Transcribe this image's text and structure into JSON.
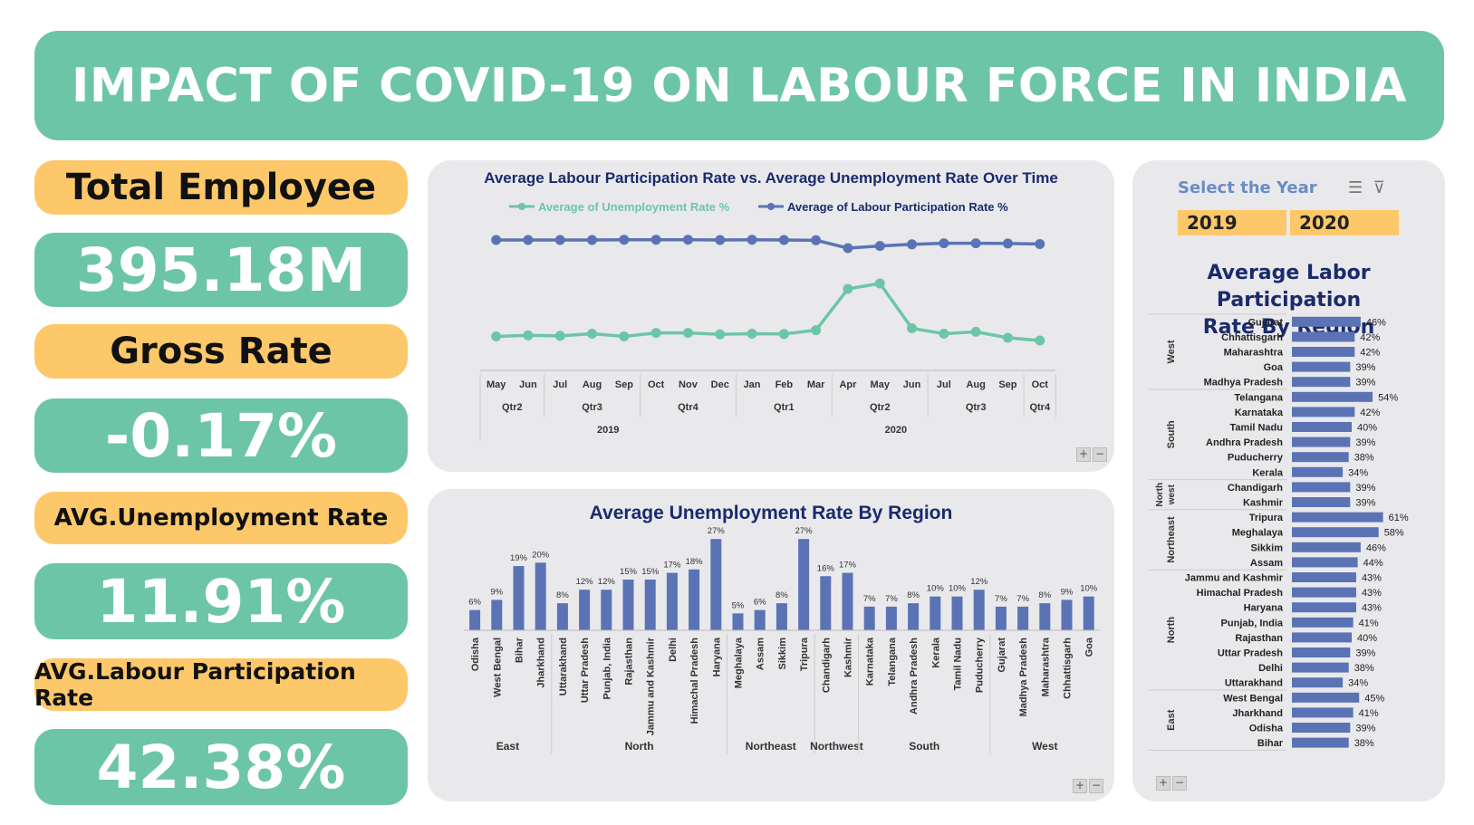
{
  "title": "IMPACT OF COVID-19 ON LABOUR FORCE IN INDIA",
  "kpis": {
    "total_employee_label": "Total Employee",
    "total_employee_value": "395.18M",
    "gross_rate_label": "Gross Rate",
    "gross_rate_value": "-0.17%",
    "avg_unemployment_label": "AVG.Unemployment Rate",
    "avg_unemployment_value": "11.91%",
    "avg_lpr_label": "AVG.Labour Participation Rate",
    "avg_lpr_value": "42.38%"
  },
  "slicer": {
    "title": "Select the Year",
    "years": [
      "2019",
      "2020"
    ]
  },
  "colors": {
    "green": "#6dc5a8",
    "blue": "#5b73b5",
    "orange": "#fdc86a",
    "navy": "#1a2a6c"
  },
  "chart_data": [
    {
      "type": "line",
      "title": "Average Labour Participation Rate vs. Average Unemployment Rate Over Time",
      "x": [
        "May",
        "Jun",
        "Jul",
        "Aug",
        "Sep",
        "Oct",
        "Nov",
        "Dec",
        "Jan",
        "Feb",
        "Mar",
        "Apr",
        "May",
        "Jun",
        "Jul",
        "Aug",
        "Sep",
        "Oct"
      ],
      "quarters": [
        {
          "label": "Qtr2",
          "span": 2
        },
        {
          "label": "Qtr3",
          "span": 3
        },
        {
          "label": "Qtr4",
          "span": 3
        },
        {
          "label": "Qtr1",
          "span": 3
        },
        {
          "label": "Qtr2",
          "span": 3
        },
        {
          "label": "Qtr3",
          "span": 3
        },
        {
          "label": "Qtr4",
          "span": 1
        }
      ],
      "years": [
        {
          "label": "2019",
          "span": 8
        },
        {
          "label": "2020",
          "span": 10
        }
      ],
      "legend_position": "top",
      "series": [
        {
          "name": "Average of Unemployment Rate %",
          "color": "#6dc5a8",
          "values": [
            8.5,
            8.9,
            8.7,
            9.5,
            8.5,
            9.8,
            9.8,
            9.3,
            9.5,
            9.4,
            10.8,
            26.0,
            28.0,
            11.5,
            9.5,
            10.2,
            8.0,
            7.0
          ]
        },
        {
          "name": "Average of Labour Participation Rate %",
          "color": "#5b73b5",
          "values": [
            44.0,
            44.0,
            44.0,
            44.0,
            44.1,
            44.1,
            44.1,
            44.0,
            44.1,
            44.0,
            43.9,
            41.0,
            41.8,
            42.4,
            42.8,
            42.8,
            42.7,
            42.5
          ]
        }
      ]
    },
    {
      "type": "bar",
      "title": "Average Unemployment Rate By Region",
      "groups": [
        {
          "region": "East",
          "states": [
            "Odisha",
            "West Bengal",
            "Bihar",
            "Jharkhand"
          ],
          "values": [
            6,
            9,
            19,
            20
          ]
        },
        {
          "region": "North",
          "states": [
            "Uttarakhand",
            "Uttar Pradesh",
            "Punjab, India",
            "Rajasthan",
            "Jammu and Kashmir",
            "Delhi",
            "Himachal Pradesh",
            "Haryana"
          ],
          "values": [
            8,
            12,
            12,
            15,
            15,
            17,
            18,
            27
          ]
        },
        {
          "region": "Northeast",
          "states": [
            "Meghalaya",
            "Assam",
            "Sikkim",
            "Tripura"
          ],
          "values": [
            5,
            6,
            8,
            27
          ]
        },
        {
          "region": "Northwest",
          "states": [
            "Chandigarh",
            "Kashmir"
          ],
          "values": [
            16,
            17
          ]
        },
        {
          "region": "South",
          "states": [
            "Karnataka",
            "Telangana",
            "Andhra Pradesh",
            "Kerala",
            "Tamil Nadu",
            "Puducherry"
          ],
          "values": [
            7,
            7,
            8,
            10,
            10,
            12
          ]
        },
        {
          "region": "West",
          "states": [
            "Gujarat",
            "Madhya Pradesh",
            "Maharashtra",
            "Chhattisgarh",
            "Goa"
          ],
          "values": [
            7,
            7,
            8,
            9,
            10
          ]
        }
      ],
      "value_suffix": "%",
      "color": "#5b73b5"
    },
    {
      "type": "bar",
      "orientation": "horizontal",
      "title_line1": "Average Labor Participation",
      "title_line2": "Rate  By Region",
      "groups": [
        {
          "region": "West",
          "states": [
            "Gujarat",
            "Chhattisgarh",
            "Maharashtra",
            "Goa",
            "Madhya Pradesh"
          ],
          "values": [
            46,
            42,
            42,
            39,
            39
          ]
        },
        {
          "region": "South",
          "states": [
            "Telangana",
            "Karnataka",
            "Tamil Nadu",
            "Andhra Pradesh",
            "Puducherry",
            "Kerala"
          ],
          "values": [
            54,
            42,
            40,
            39,
            38,
            34
          ]
        },
        {
          "region": "North west",
          "states": [
            "Chandigarh",
            "Kashmir"
          ],
          "values": [
            39,
            39
          ]
        },
        {
          "region": "Northeast",
          "states": [
            "Tripura",
            "Meghalaya",
            "Sikkim",
            "Assam"
          ],
          "values": [
            61,
            58,
            46,
            44
          ]
        },
        {
          "region": "North",
          "states": [
            "Jammu and Kashmir",
            "Himachal Pradesh",
            "Haryana",
            "Punjab, India",
            "Rajasthan",
            "Uttar Pradesh",
            "Delhi",
            "Uttarakhand"
          ],
          "values": [
            43,
            43,
            43,
            41,
            40,
            39,
            38,
            34
          ]
        },
        {
          "region": "East",
          "states": [
            "West Bengal",
            "Jharkhand",
            "Odisha",
            "Bihar"
          ],
          "values": [
            45,
            41,
            39,
            38
          ]
        }
      ],
      "value_suffix": "%",
      "color": "#5b73b5"
    }
  ]
}
